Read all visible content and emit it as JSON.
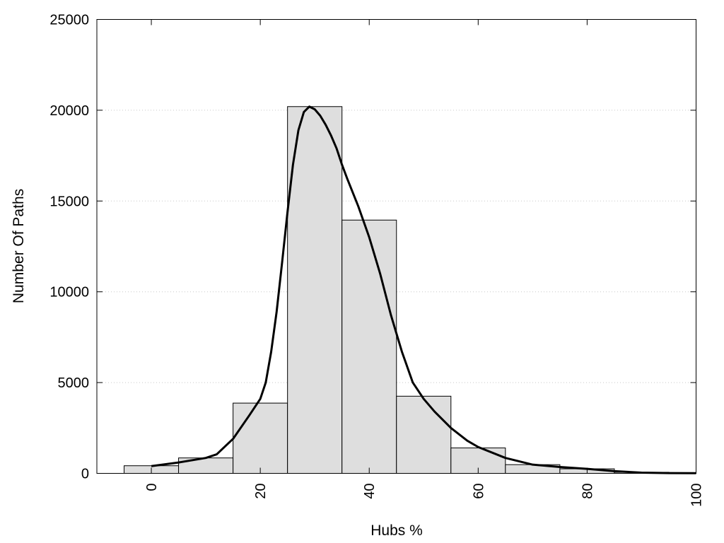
{
  "chart_data": {
    "type": "bar",
    "xlabel": "Hubs %",
    "ylabel": "Number Of Paths",
    "xlim": [
      -10,
      100
    ],
    "ylim": [
      0,
      25000
    ],
    "x_ticks": [
      0,
      20,
      40,
      60,
      80,
      100
    ],
    "y_ticks": [
      0,
      5000,
      10000,
      15000,
      20000,
      25000
    ],
    "grid": "horizontal dotted",
    "bin_width": 10,
    "bins": [
      {
        "center": 0,
        "value": 420
      },
      {
        "center": 10,
        "value": 850
      },
      {
        "center": 20,
        "value": 3870
      },
      {
        "center": 30,
        "value": 20200
      },
      {
        "center": 40,
        "value": 13950
      },
      {
        "center": 50,
        "value": 4250
      },
      {
        "center": 60,
        "value": 1400
      },
      {
        "center": 70,
        "value": 480
      },
      {
        "center": 80,
        "value": 250
      },
      {
        "center": 90,
        "value": 60
      }
    ],
    "density_curve": {
      "x": [
        0,
        5,
        10,
        12,
        15,
        18,
        20,
        21,
        22,
        23,
        24,
        25,
        26,
        27,
        28,
        29,
        30,
        31,
        32,
        33,
        34,
        35,
        36,
        38,
        40,
        42,
        44,
        46,
        48,
        50,
        52,
        55,
        58,
        60,
        65,
        70,
        75,
        80,
        85,
        90,
        95,
        100
      ],
      "y": [
        400,
        600,
        850,
        1050,
        1900,
        3200,
        4100,
        5000,
        6700,
        8900,
        11600,
        14400,
        17000,
        18900,
        19900,
        20200,
        20050,
        19700,
        19200,
        18600,
        17900,
        17000,
        16200,
        14700,
        13000,
        11000,
        8700,
        6700,
        5000,
        4100,
        3400,
        2500,
        1800,
        1450,
        850,
        480,
        350,
        250,
        120,
        40,
        15,
        10
      ]
    },
    "colors": {
      "bar_fill": "#dedede",
      "bar_stroke": "#000000",
      "curve": "#000000"
    }
  }
}
